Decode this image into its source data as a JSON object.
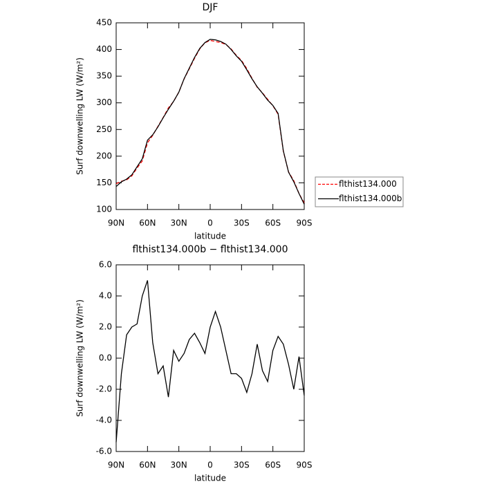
{
  "chart_data": [
    {
      "type": "line",
      "title": "DJF",
      "xlabel": "latitude",
      "ylabel": "Surf downwelling LW (W/m²)",
      "x": [
        90,
        85,
        80,
        75,
        70,
        65,
        60,
        55,
        50,
        45,
        40,
        35,
        30,
        25,
        20,
        15,
        10,
        5,
        0,
        -5,
        -10,
        -15,
        -20,
        -25,
        -30,
        -35,
        -40,
        -45,
        -50,
        -55,
        -60,
        -65,
        -70,
        -75,
        -80,
        -85,
        -90
      ],
      "series": [
        {
          "name": "flthist134.000",
          "color": "#ff0000",
          "line_style": "dashed",
          "values": [
            148.4,
            153,
            155.5,
            163,
            177.8,
            191,
            225,
            239,
            256,
            272.5,
            290.5,
            302.5,
            320.2,
            344.7,
            363.8,
            383.4,
            401,
            412.7,
            417,
            415,
            413,
            409.5,
            401,
            389,
            379.3,
            364.2,
            346,
            329.1,
            318.8,
            306.5,
            294.5,
            278.6,
            209.1,
            170.4,
            154,
            129.9,
            112.4
          ]
        },
        {
          "name": "flthist134.000b",
          "color": "#000000",
          "line_style": "solid",
          "values": [
            143,
            152,
            157,
            165,
            180,
            195,
            230,
            240,
            255,
            272,
            288,
            303,
            320,
            345,
            365,
            385,
            402,
            413,
            419,
            418,
            415,
            410,
            400,
            388,
            378,
            362,
            345,
            330,
            318,
            305,
            295,
            280,
            210,
            170,
            152,
            130,
            110
          ]
        }
      ],
      "xlim": [
        90,
        -90
      ],
      "xticks": [
        {
          "value": 90,
          "label": "90N"
        },
        {
          "value": 60,
          "label": "60N"
        },
        {
          "value": 30,
          "label": "30N"
        },
        0,
        {
          "value": -30,
          "label": "30S"
        },
        {
          "value": -60,
          "label": "60S"
        },
        {
          "value": -90,
          "label": "90S"
        }
      ],
      "ylim": [
        100,
        450
      ],
      "yticks": [
        100,
        150,
        200,
        250,
        300,
        350,
        400,
        450
      ],
      "legend": "right"
    },
    {
      "type": "line",
      "title": "flthist134.000b − flthist134.000",
      "xlabel": "latitude",
      "ylabel": "Surf downwelling LW (W/m²)",
      "x": [
        90,
        85,
        80,
        75,
        70,
        65,
        60,
        55,
        50,
        45,
        40,
        35,
        30,
        25,
        20,
        15,
        10,
        5,
        0,
        -5,
        -10,
        -15,
        -20,
        -25,
        -30,
        -35,
        -40,
        -45,
        -50,
        -55,
        -60,
        -65,
        -70,
        -75,
        -80,
        -85,
        -90
      ],
      "series": [
        {
          "color": "#000000",
          "line_style": "solid",
          "values": [
            -5.4,
            -1,
            1.5,
            2,
            2.2,
            4,
            5,
            1,
            -1,
            -0.5,
            -2.5,
            0.5,
            -0.2,
            0.3,
            1.2,
            1.6,
            1,
            0.3,
            2,
            3,
            2,
            0.5,
            -1,
            -1,
            -1.3,
            -2.2,
            -1,
            0.9,
            -0.8,
            -1.5,
            0.5,
            1.4,
            0.9,
            -0.4,
            -2,
            0.1,
            -2.4
          ]
        }
      ],
      "xlim": [
        90,
        -90
      ],
      "xticks": [
        {
          "value": 90,
          "label": "90N"
        },
        {
          "value": 60,
          "label": "60N"
        },
        {
          "value": 30,
          "label": "30N"
        },
        0,
        {
          "value": -30,
          "label": "30S"
        },
        {
          "value": -60,
          "label": "60S"
        },
        {
          "value": -90,
          "label": "90S"
        }
      ],
      "ylim": [
        -6,
        6
      ],
      "yticks": [
        {
          "value": -6,
          "label": "-6.0"
        },
        {
          "value": -4,
          "label": "-4.0"
        },
        {
          "value": -2,
          "label": "-2.0"
        },
        {
          "value": 0,
          "label": "0.0"
        },
        {
          "value": 2,
          "label": "2.0"
        },
        {
          "value": 4,
          "label": "4.0"
        },
        {
          "value": 6,
          "label": "6.0"
        }
      ]
    }
  ]
}
